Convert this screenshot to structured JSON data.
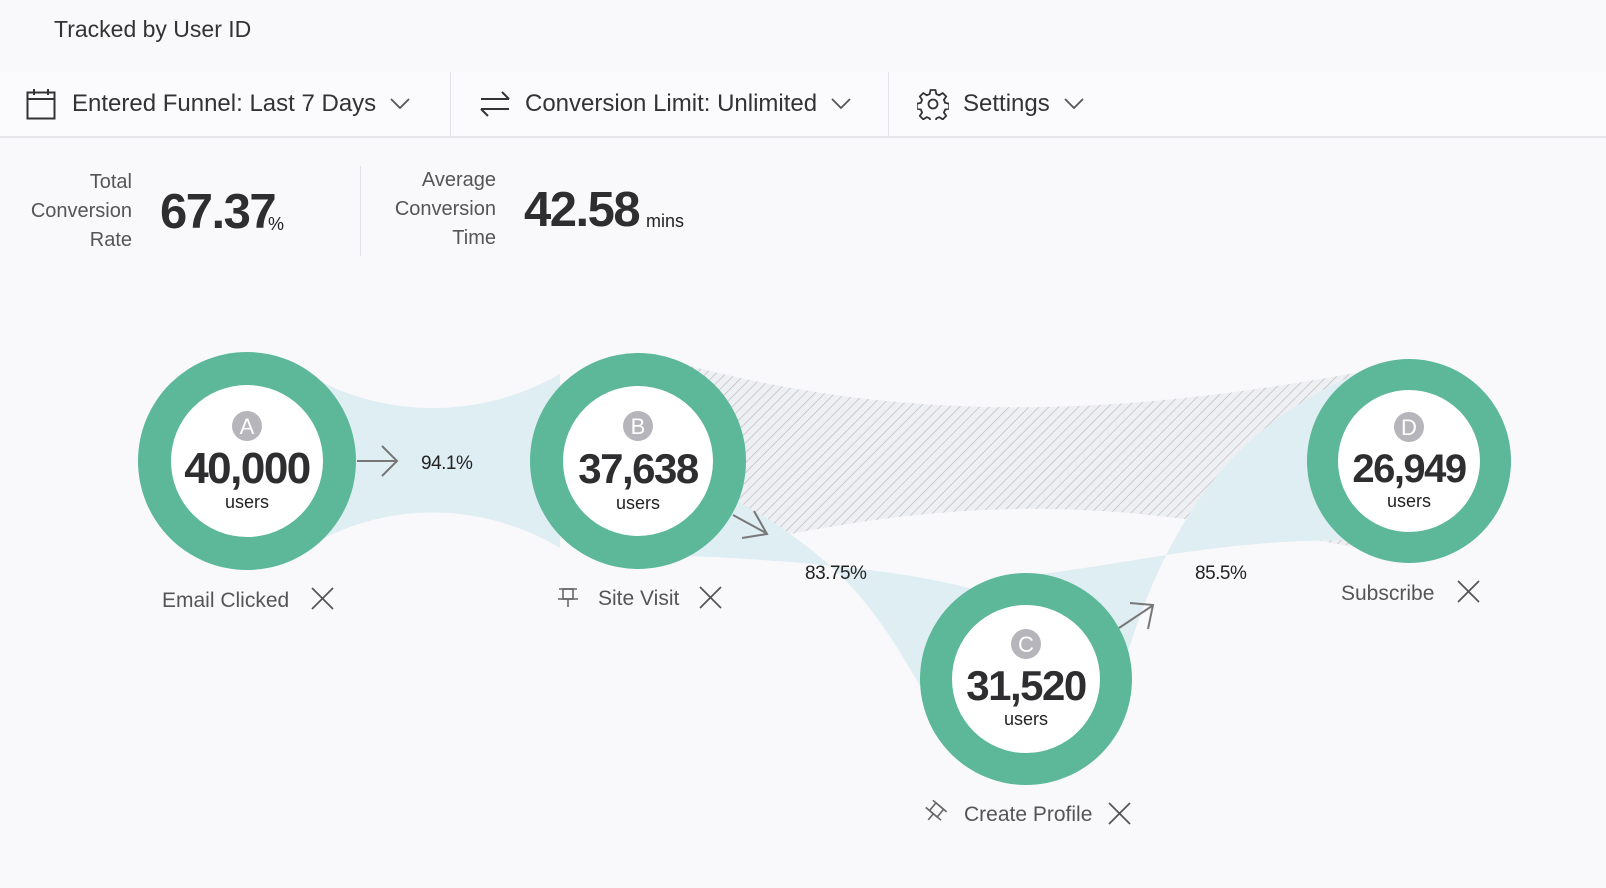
{
  "header": {
    "title": "Tracked by User ID"
  },
  "toolbar": {
    "date_filter": "Entered Funnel: Last 7 Days",
    "conversion_limit": "Conversion Limit: Unlimited",
    "settings": "Settings"
  },
  "stats": {
    "total_conversion": {
      "label_lines": [
        "Total",
        "Conversion",
        "Rate"
      ],
      "value": "67.37",
      "unit": "%"
    },
    "avg_conversion_time": {
      "label_lines": [
        "Average",
        "Conversion",
        "Time"
      ],
      "value": "42.58",
      "unit": "mins"
    }
  },
  "funnel": {
    "steps": [
      {
        "letter": "A",
        "count": "40,000",
        "unit": "users",
        "name": "Email Clicked"
      },
      {
        "letter": "B",
        "count": "37,638",
        "unit": "users",
        "name": "Site Visit"
      },
      {
        "letter": "C",
        "count": "31,520",
        "unit": "users",
        "name": "Create Profile"
      },
      {
        "letter": "D",
        "count": "26,949",
        "unit": "users",
        "name": "Subscribe"
      }
    ],
    "conversions": [
      "94.1%",
      "83.75%",
      "85.5%"
    ]
  },
  "colors": {
    "ring": "#5cb898",
    "flow": "#dfeef2",
    "badge": "#b5b5bb",
    "text": "#2e2e30"
  }
}
